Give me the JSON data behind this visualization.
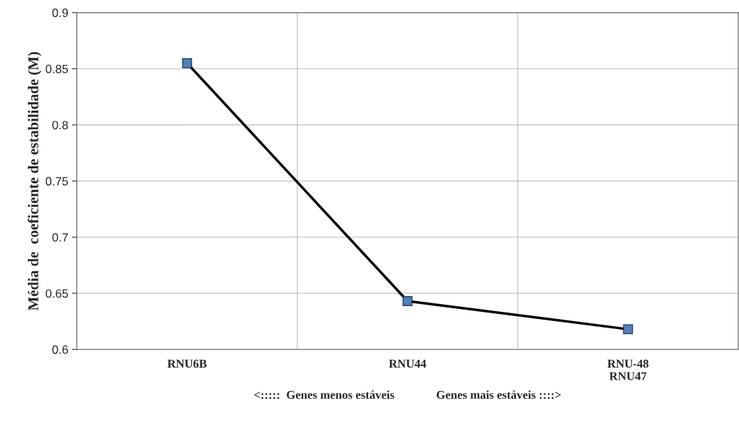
{
  "chart_data": {
    "type": "line",
    "categories": [
      "RNU6B",
      "RNU44",
      "RNU-48\nRNU47"
    ],
    "series": [
      {
        "color": "#4f81bd",
        "values": [
          0.855,
          0.643,
          0.618
        ]
      }
    ],
    "ylabel": "Média de  coeficiente de estabilidade (M)",
    "xlabel": "<:::::  Genes menos estáveis              Genes mais estáveis ::::>",
    "ylim": [
      0.6,
      0.9
    ],
    "yticks": [
      0.6,
      0.65,
      0.7,
      0.75,
      0.8,
      0.85,
      0.9
    ],
    "grid": true,
    "marker": "square",
    "line_style": "solid",
    "legend": false
  }
}
